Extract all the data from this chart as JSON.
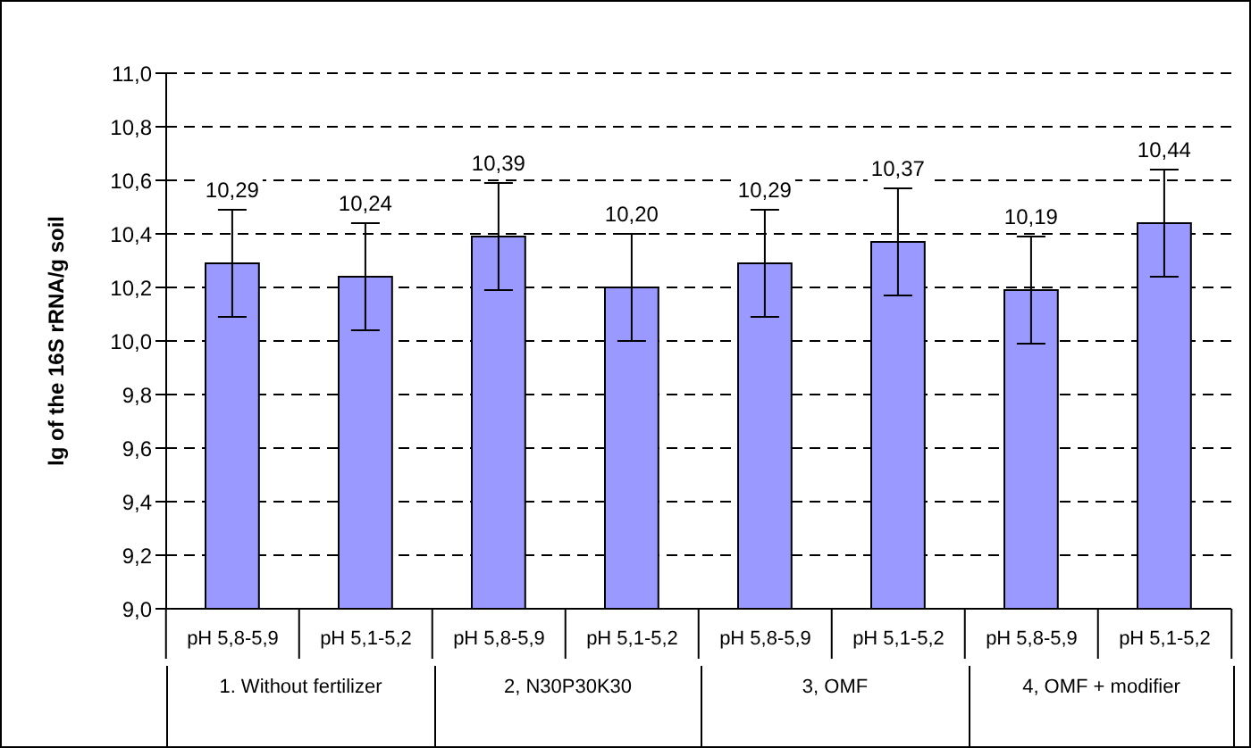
{
  "chart_data": {
    "type": "bar",
    "ylabel": "lg of the 16S rRNA/g soil",
    "categories": [
      "pH 5,8-5,9",
      "pH 5,1-5,2",
      "pH 5,8-5,9",
      "pH 5,1-5,2",
      "pH 5,8-5,9",
      "pH 5,1-5,2",
      "pH 5,8-5,9",
      "pH 5,1-5,2"
    ],
    "values": [
      10.29,
      10.24,
      10.39,
      10.2,
      10.29,
      10.37,
      10.19,
      10.44
    ],
    "errors": [
      0.2,
      0.2,
      0.2,
      0.2,
      0.2,
      0.2,
      0.2,
      0.2
    ],
    "value_labels": [
      "10,29",
      "10,24",
      "10,39",
      "10,20",
      "10,29",
      "10,37",
      "10,19",
      "10,44"
    ],
    "color": "#9999ff",
    "ylim": [
      9.0,
      11.0
    ],
    "yticks": [
      {
        "value": 9.0,
        "label": "9,0"
      },
      {
        "value": 9.2,
        "label": "9,2"
      },
      {
        "value": 9.4,
        "label": "9,4"
      },
      {
        "value": 9.6,
        "label": "9,6"
      },
      {
        "value": 9.8,
        "label": "9,8"
      },
      {
        "value": 10.0,
        "label": "10,0"
      },
      {
        "value": 10.2,
        "label": "10,2"
      },
      {
        "value": 10.4,
        "label": "10,4"
      },
      {
        "value": 10.6,
        "label": "10,6"
      },
      {
        "value": 10.8,
        "label": "10,8"
      },
      {
        "value": 11.0,
        "label": "11,0"
      }
    ],
    "grid": "y",
    "annotations": [
      "1. Without fertilizer",
      "2, N30P30K30",
      "3, OMF",
      "4, OMF + modifier"
    ]
  }
}
